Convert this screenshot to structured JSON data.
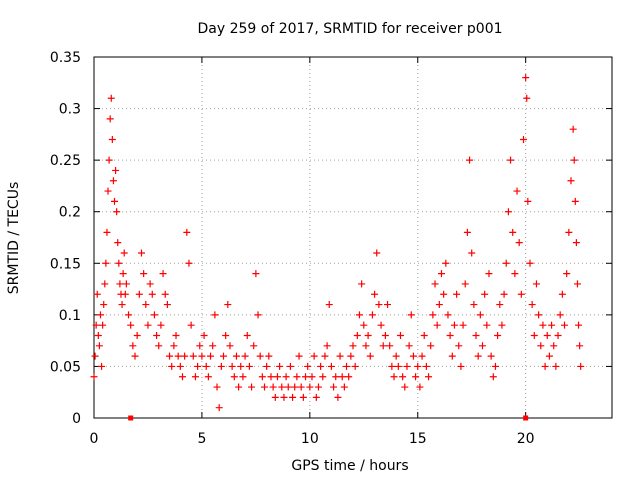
{
  "chart_data": {
    "type": "scatter",
    "title": "Day 259 of 2017, SRMTID for receiver p001",
    "xlabel": "GPS time / hours",
    "ylabel": "SRMTID / TECUs",
    "xlim": [
      0,
      24
    ],
    "ylim": [
      0,
      0.35
    ],
    "xticks": [
      0,
      5,
      10,
      15,
      20
    ],
    "yticks": [
      0,
      0.05,
      0.1,
      0.15,
      0.2,
      0.25,
      0.3,
      0.35
    ],
    "xtick_labels": [
      "0",
      "5",
      "10",
      "15",
      "20"
    ],
    "ytick_labels": [
      "0",
      "0.05",
      "0.1",
      "0.15",
      "0.2",
      "0.25",
      "0.3",
      "0.35"
    ],
    "grid": true,
    "marker": "+",
    "color": "#ff0000",
    "series": [
      {
        "name": "SRMTID p001",
        "points": [
          [
            0.0,
            0.04
          ],
          [
            0.05,
            0.06
          ],
          [
            0.1,
            0.09
          ],
          [
            0.15,
            0.12
          ],
          [
            0.2,
            0.08
          ],
          [
            0.25,
            0.07
          ],
          [
            0.3,
            0.1
          ],
          [
            0.35,
            0.05
          ],
          [
            0.4,
            0.09
          ],
          [
            0.45,
            0.11
          ],
          [
            0.5,
            0.13
          ],
          [
            0.55,
            0.15
          ],
          [
            0.6,
            0.18
          ],
          [
            0.65,
            0.22
          ],
          [
            0.7,
            0.25
          ],
          [
            0.75,
            0.29
          ],
          [
            0.8,
            0.31
          ],
          [
            0.85,
            0.27
          ],
          [
            0.9,
            0.23
          ],
          [
            0.95,
            0.21
          ],
          [
            1.0,
            0.24
          ],
          [
            1.05,
            0.2
          ],
          [
            1.1,
            0.17
          ],
          [
            1.15,
            0.15
          ],
          [
            1.2,
            0.13
          ],
          [
            1.25,
            0.12
          ],
          [
            1.3,
            0.11
          ],
          [
            1.35,
            0.14
          ],
          [
            1.4,
            0.16
          ],
          [
            1.45,
            0.12
          ],
          [
            1.5,
            0.13
          ],
          [
            1.6,
            0.1
          ],
          [
            1.7,
            0.09
          ],
          [
            1.8,
            0.07
          ],
          [
            1.9,
            0.06
          ],
          [
            2.0,
            0.08
          ],
          [
            2.1,
            0.12
          ],
          [
            2.2,
            0.16
          ],
          [
            2.3,
            0.14
          ],
          [
            2.4,
            0.11
          ],
          [
            2.5,
            0.09
          ],
          [
            2.6,
            0.13
          ],
          [
            2.7,
            0.12
          ],
          [
            2.8,
            0.1
          ],
          [
            2.9,
            0.08
          ],
          [
            3.0,
            0.07
          ],
          [
            3.1,
            0.09
          ],
          [
            3.2,
            0.14
          ],
          [
            3.3,
            0.12
          ],
          [
            3.4,
            0.11
          ],
          [
            3.5,
            0.06
          ],
          [
            3.6,
            0.05
          ],
          [
            3.7,
            0.07
          ],
          [
            3.8,
            0.08
          ],
          [
            3.9,
            0.06
          ],
          [
            4.0,
            0.05
          ],
          [
            4.1,
            0.04
          ],
          [
            4.2,
            0.06
          ],
          [
            4.3,
            0.18
          ],
          [
            4.4,
            0.15
          ],
          [
            4.5,
            0.09
          ],
          [
            4.6,
            0.06
          ],
          [
            4.7,
            0.04
          ],
          [
            4.8,
            0.05
          ],
          [
            4.9,
            0.07
          ],
          [
            5.0,
            0.06
          ],
          [
            5.1,
            0.08
          ],
          [
            5.2,
            0.05
          ],
          [
            5.3,
            0.04
          ],
          [
            5.4,
            0.06
          ],
          [
            5.5,
            0.07
          ],
          [
            5.6,
            0.1
          ],
          [
            5.7,
            0.03
          ],
          [
            5.8,
            0.01
          ],
          [
            5.9,
            0.05
          ],
          [
            6.0,
            0.06
          ],
          [
            6.1,
            0.08
          ],
          [
            6.2,
            0.11
          ],
          [
            6.3,
            0.07
          ],
          [
            6.4,
            0.05
          ],
          [
            6.5,
            0.04
          ],
          [
            6.6,
            0.06
          ],
          [
            6.7,
            0.03
          ],
          [
            6.8,
            0.05
          ],
          [
            6.9,
            0.04
          ],
          [
            7.0,
            0.06
          ],
          [
            7.1,
            0.08
          ],
          [
            7.2,
            0.05
          ],
          [
            7.3,
            0.03
          ],
          [
            7.4,
            0.07
          ],
          [
            7.5,
            0.14
          ],
          [
            7.6,
            0.1
          ],
          [
            7.7,
            0.06
          ],
          [
            7.8,
            0.04
          ],
          [
            7.9,
            0.03
          ],
          [
            8.0,
            0.05
          ],
          [
            8.1,
            0.06
          ],
          [
            8.2,
            0.04
          ],
          [
            8.3,
            0.03
          ],
          [
            8.4,
            0.02
          ],
          [
            8.5,
            0.04
          ],
          [
            8.6,
            0.05
          ],
          [
            8.7,
            0.03
          ],
          [
            8.8,
            0.02
          ],
          [
            8.9,
            0.04
          ],
          [
            9.0,
            0.03
          ],
          [
            9.1,
            0.05
          ],
          [
            9.2,
            0.02
          ],
          [
            9.3,
            0.03
          ],
          [
            9.4,
            0.04
          ],
          [
            9.5,
            0.06
          ],
          [
            9.6,
            0.03
          ],
          [
            9.7,
            0.02
          ],
          [
            9.8,
            0.04
          ],
          [
            9.9,
            0.05
          ],
          [
            10.0,
            0.03
          ],
          [
            10.1,
            0.04
          ],
          [
            10.2,
            0.06
          ],
          [
            10.3,
            0.02
          ],
          [
            10.4,
            0.03
          ],
          [
            10.5,
            0.05
          ],
          [
            10.6,
            0.04
          ],
          [
            10.7,
            0.06
          ],
          [
            10.8,
            0.07
          ],
          [
            10.9,
            0.11
          ],
          [
            11.0,
            0.05
          ],
          [
            11.1,
            0.03
          ],
          [
            11.2,
            0.04
          ],
          [
            11.3,
            0.02
          ],
          [
            11.4,
            0.06
          ],
          [
            11.5,
            0.04
          ],
          [
            11.6,
            0.03
          ],
          [
            11.7,
            0.05
          ],
          [
            11.8,
            0.04
          ],
          [
            11.9,
            0.06
          ],
          [
            12.0,
            0.07
          ],
          [
            12.1,
            0.05
          ],
          [
            12.2,
            0.08
          ],
          [
            12.3,
            0.1
          ],
          [
            12.4,
            0.13
          ],
          [
            12.5,
            0.09
          ],
          [
            12.6,
            0.07
          ],
          [
            12.7,
            0.08
          ],
          [
            12.8,
            0.06
          ],
          [
            12.9,
            0.1
          ],
          [
            13.0,
            0.12
          ],
          [
            13.1,
            0.16
          ],
          [
            13.2,
            0.11
          ],
          [
            13.3,
            0.09
          ],
          [
            13.4,
            0.07
          ],
          [
            13.5,
            0.08
          ],
          [
            13.6,
            0.11
          ],
          [
            13.7,
            0.07
          ],
          [
            13.8,
            0.05
          ],
          [
            13.9,
            0.04
          ],
          [
            14.0,
            0.06
          ],
          [
            14.1,
            0.05
          ],
          [
            14.2,
            0.08
          ],
          [
            14.3,
            0.04
          ],
          [
            14.4,
            0.03
          ],
          [
            14.5,
            0.05
          ],
          [
            14.6,
            0.07
          ],
          [
            14.7,
            0.1
          ],
          [
            14.8,
            0.06
          ],
          [
            14.9,
            0.04
          ],
          [
            15.0,
            0.05
          ],
          [
            15.1,
            0.03
          ],
          [
            15.2,
            0.06
          ],
          [
            15.3,
            0.08
          ],
          [
            15.4,
            0.05
          ],
          [
            15.5,
            0.04
          ],
          [
            15.6,
            0.07
          ],
          [
            15.7,
            0.1
          ],
          [
            15.8,
            0.13
          ],
          [
            15.9,
            0.09
          ],
          [
            16.0,
            0.11
          ],
          [
            16.1,
            0.14
          ],
          [
            16.2,
            0.12
          ],
          [
            16.3,
            0.15
          ],
          [
            16.4,
            0.1
          ],
          [
            16.5,
            0.08
          ],
          [
            16.6,
            0.06
          ],
          [
            16.7,
            0.09
          ],
          [
            16.8,
            0.12
          ],
          [
            16.9,
            0.07
          ],
          [
            17.0,
            0.05
          ],
          [
            17.1,
            0.09
          ],
          [
            17.2,
            0.13
          ],
          [
            17.3,
            0.18
          ],
          [
            17.4,
            0.25
          ],
          [
            17.5,
            0.16
          ],
          [
            17.6,
            0.11
          ],
          [
            17.7,
            0.08
          ],
          [
            17.8,
            0.06
          ],
          [
            17.9,
            0.1
          ],
          [
            18.0,
            0.07
          ],
          [
            18.1,
            0.12
          ],
          [
            18.2,
            0.09
          ],
          [
            18.3,
            0.14
          ],
          [
            18.4,
            0.06
          ],
          [
            18.5,
            0.04
          ],
          [
            18.6,
            0.05
          ],
          [
            18.7,
            0.08
          ],
          [
            18.8,
            0.11
          ],
          [
            18.9,
            0.09
          ],
          [
            19.0,
            0.12
          ],
          [
            19.1,
            0.15
          ],
          [
            19.2,
            0.2
          ],
          [
            19.3,
            0.25
          ],
          [
            19.4,
            0.18
          ],
          [
            19.5,
            0.14
          ],
          [
            19.6,
            0.22
          ],
          [
            19.7,
            0.17
          ],
          [
            19.8,
            0.12
          ],
          [
            19.9,
            0.27
          ],
          [
            20.0,
            0.33
          ],
          [
            20.05,
            0.31
          ],
          [
            20.1,
            0.21
          ],
          [
            20.2,
            0.15
          ],
          [
            20.3,
            0.11
          ],
          [
            20.4,
            0.08
          ],
          [
            20.5,
            0.13
          ],
          [
            20.6,
            0.1
          ],
          [
            20.7,
            0.07
          ],
          [
            20.8,
            0.09
          ],
          [
            20.9,
            0.05
          ],
          [
            21.0,
            0.08
          ],
          [
            21.1,
            0.06
          ],
          [
            21.2,
            0.09
          ],
          [
            21.3,
            0.07
          ],
          [
            21.4,
            0.05
          ],
          [
            21.5,
            0.08
          ],
          [
            21.6,
            0.1
          ],
          [
            21.7,
            0.12
          ],
          [
            21.8,
            0.09
          ],
          [
            21.9,
            0.14
          ],
          [
            22.0,
            0.18
          ],
          [
            22.1,
            0.23
          ],
          [
            22.2,
            0.28
          ],
          [
            22.25,
            0.25
          ],
          [
            22.3,
            0.21
          ],
          [
            22.35,
            0.17
          ],
          [
            22.4,
            0.13
          ],
          [
            22.45,
            0.09
          ],
          [
            22.5,
            0.07
          ],
          [
            22.55,
            0.05
          ]
        ]
      }
    ],
    "highlight_points": [
      [
        1.7,
        0.0
      ],
      [
        20.0,
        0.0
      ]
    ]
  }
}
